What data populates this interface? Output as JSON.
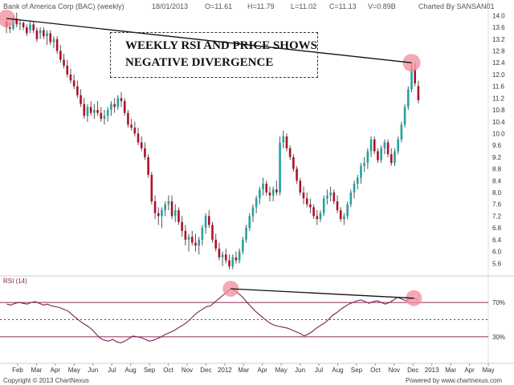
{
  "header": {
    "title": "Bank of America Corp (BAC) (weekly)",
    "date": "18/01/2013",
    "open": "O=11.61",
    "high": "H=11.79",
    "low": "L=11.02",
    "close": "C=11.13",
    "volume": "V=0.89B",
    "charted_by": "Charted By SANSAN01"
  },
  "annotation": {
    "line1": "WEEKLY RSI AND PRICE SHOWS",
    "line2": "NEGATIVE DIVERGENCE"
  },
  "footer": {
    "copyright": "Copyright © 2013 ChartNexus",
    "powered": "Powered by www.chartnexus.com"
  },
  "colors": {
    "up": "#22a3a3",
    "down": "#b0102a",
    "rsi_line": "#7a2450",
    "highlight": "#f08c98"
  },
  "chart_data": [
    {
      "type": "candlestick",
      "title": "Bank of America Corp (BAC) (weekly)",
      "ylim": [
        5.2,
        14.2
      ],
      "y_ticks": [
        5.6,
        6.0,
        6.4,
        6.8,
        7.2,
        7.6,
        8.0,
        8.4,
        8.8,
        9.2,
        9.6,
        10.0,
        10.4,
        10.8,
        11.2,
        11.6,
        12.0,
        12.4,
        12.8,
        13.2,
        13.6,
        14.0
      ],
      "x_ticks": [
        "Feb",
        "Mar",
        "Apr",
        "May",
        "Jun",
        "Jul",
        "Aug",
        "Sep",
        "Oct",
        "Nov",
        "Dec",
        "2012",
        "Mar",
        "Apr",
        "May",
        "Jun",
        "Jul",
        "Aug",
        "Sep",
        "Oct",
        "Nov",
        "Dec",
        "2013",
        "Mar",
        "Apr",
        "May"
      ],
      "series": [
        {
          "values": [
            [
              13.8,
              13.9,
              13.4,
              13.6
            ],
            [
              13.6,
              13.75,
              13.4,
              13.55
            ],
            [
              13.55,
              14.0,
              13.5,
              13.9
            ],
            [
              13.9,
              14.1,
              13.6,
              13.7
            ],
            [
              13.7,
              13.85,
              13.5,
              13.75
            ],
            [
              13.75,
              13.8,
              13.5,
              13.6
            ],
            [
              13.6,
              13.7,
              13.3,
              13.4
            ],
            [
              13.5,
              13.8,
              13.4,
              13.7
            ],
            [
              13.7,
              13.8,
              13.4,
              13.5
            ],
            [
              13.5,
              13.6,
              13.1,
              13.2
            ],
            [
              13.4,
              13.6,
              13.2,
              13.5
            ],
            [
              13.5,
              13.6,
              13.2,
              13.3
            ],
            [
              13.3,
              13.5,
              13.0,
              13.4
            ],
            [
              13.4,
              13.5,
              13.0,
              13.1
            ],
            [
              13.1,
              13.3,
              12.9,
              13.2
            ],
            [
              13.2,
              13.3,
              12.7,
              12.8
            ],
            [
              12.8,
              13.0,
              12.4,
              12.5
            ],
            [
              12.5,
              12.7,
              12.2,
              12.3
            ],
            [
              12.3,
              12.5,
              11.9,
              12.0
            ],
            [
              12.0,
              12.2,
              11.7,
              11.8
            ],
            [
              11.8,
              12.0,
              11.5,
              11.6
            ],
            [
              11.6,
              11.8,
              11.2,
              11.3
            ],
            [
              11.3,
              11.5,
              10.9,
              11.0
            ],
            [
              11.0,
              11.2,
              10.5,
              10.6
            ],
            [
              10.6,
              11.0,
              10.4,
              10.9
            ],
            [
              10.9,
              11.1,
              10.6,
              10.7
            ],
            [
              10.7,
              11.0,
              10.5,
              10.8
            ],
            [
              10.8,
              11.1,
              10.6,
              10.7
            ],
            [
              10.7,
              10.9,
              10.4,
              10.5
            ],
            [
              10.5,
              10.8,
              10.3,
              10.6
            ],
            [
              10.6,
              10.9,
              10.4,
              10.8
            ],
            [
              10.8,
              11.1,
              10.6,
              11.0
            ],
            [
              11.0,
              11.2,
              10.7,
              10.9
            ],
            [
              10.9,
              11.3,
              10.8,
              11.2
            ],
            [
              11.2,
              11.4,
              10.9,
              11.1
            ],
            [
              11.1,
              11.2,
              10.6,
              10.7
            ],
            [
              10.7,
              10.8,
              10.2,
              10.3
            ],
            [
              10.3,
              10.5,
              10.1,
              10.2
            ],
            [
              10.2,
              10.4,
              9.9,
              10.0
            ],
            [
              10.0,
              10.2,
              9.6,
              9.7
            ],
            [
              9.7,
              9.9,
              9.4,
              9.5
            ],
            [
              9.5,
              9.7,
              9.1,
              9.2
            ],
            [
              9.2,
              9.3,
              8.5,
              8.6
            ],
            [
              8.6,
              8.7,
              7.6,
              7.7
            ],
            [
              7.7,
              7.9,
              7.1,
              7.3
            ],
            [
              7.3,
              7.5,
              6.9,
              7.2
            ],
            [
              7.2,
              7.5,
              6.8,
              7.4
            ],
            [
              7.4,
              7.7,
              7.2,
              7.6
            ],
            [
              7.6,
              7.9,
              7.4,
              7.7
            ],
            [
              7.7,
              7.9,
              7.1,
              7.2
            ],
            [
              7.2,
              7.6,
              7.0,
              7.4
            ],
            [
              7.4,
              7.5,
              6.9,
              7.0
            ],
            [
              7.0,
              7.2,
              6.5,
              6.7
            ],
            [
              6.7,
              6.9,
              6.2,
              6.4
            ],
            [
              6.4,
              6.6,
              6.0,
              6.5
            ],
            [
              6.5,
              6.7,
              6.2,
              6.3
            ],
            [
              6.3,
              6.6,
              6.0,
              6.2
            ],
            [
              6.2,
              6.5,
              5.9,
              6.4
            ],
            [
              6.4,
              6.9,
              6.2,
              6.8
            ],
            [
              6.8,
              7.3,
              6.6,
              7.2
            ],
            [
              7.2,
              7.4,
              6.8,
              6.9
            ],
            [
              6.9,
              7.0,
              6.3,
              6.4
            ],
            [
              6.4,
              6.6,
              6.0,
              6.1
            ],
            [
              6.1,
              6.3,
              5.7,
              5.8
            ],
            [
              5.8,
              6.0,
              5.5,
              5.9
            ],
            [
              5.9,
              6.1,
              5.6,
              5.7
            ],
            [
              5.7,
              5.9,
              5.4,
              5.5
            ],
            [
              5.5,
              5.9,
              5.4,
              5.8
            ],
            [
              5.8,
              6.0,
              5.6,
              5.7
            ],
            [
              5.7,
              6.1,
              5.6,
              6.0
            ],
            [
              6.0,
              6.5,
              5.9,
              6.4
            ],
            [
              6.4,
              6.9,
              6.3,
              6.8
            ],
            [
              6.8,
              7.3,
              6.7,
              7.2
            ],
            [
              7.2,
              7.6,
              7.0,
              7.5
            ],
            [
              7.5,
              7.9,
              7.3,
              7.8
            ],
            [
              7.8,
              8.2,
              7.6,
              8.1
            ],
            [
              8.1,
              8.5,
              7.9,
              8.3
            ],
            [
              8.3,
              8.4,
              7.9,
              8.0
            ],
            [
              8.0,
              8.2,
              7.7,
              7.9
            ],
            [
              7.9,
              8.2,
              7.7,
              8.1
            ],
            [
              8.1,
              8.4,
              7.9,
              8.0
            ],
            [
              8.0,
              9.9,
              7.9,
              9.7
            ],
            [
              9.7,
              10.1,
              9.5,
              9.9
            ],
            [
              9.9,
              10.0,
              9.4,
              9.5
            ],
            [
              9.5,
              9.6,
              9.1,
              9.2
            ],
            [
              9.2,
              9.3,
              8.7,
              8.8
            ],
            [
              8.8,
              8.9,
              8.3,
              8.4
            ],
            [
              8.4,
              8.5,
              7.9,
              8.0
            ],
            [
              8.0,
              8.2,
              7.6,
              7.8
            ],
            [
              7.8,
              8.0,
              7.5,
              7.6
            ],
            [
              7.6,
              7.8,
              7.3,
              7.5
            ],
            [
              7.5,
              7.6,
              7.1,
              7.2
            ],
            [
              7.2,
              7.4,
              6.9,
              7.1
            ],
            [
              7.1,
              7.4,
              7.0,
              7.3
            ],
            [
              7.3,
              7.9,
              7.2,
              7.8
            ],
            [
              7.8,
              8.1,
              7.6,
              7.9
            ],
            [
              7.9,
              8.2,
              7.7,
              8.0
            ],
            [
              8.0,
              8.1,
              7.6,
              7.7
            ],
            [
              7.7,
              7.9,
              7.3,
              7.4
            ],
            [
              7.4,
              7.5,
              7.0,
              7.1
            ],
            [
              7.1,
              7.3,
              6.9,
              7.2
            ],
            [
              7.2,
              7.7,
              7.1,
              7.6
            ],
            [
              7.6,
              8.1,
              7.5,
              8.0
            ],
            [
              8.0,
              8.4,
              7.8,
              8.3
            ],
            [
              8.3,
              8.6,
              8.1,
              8.5
            ],
            [
              8.5,
              9.0,
              8.3,
              8.9
            ],
            [
              8.9,
              9.2,
              8.7,
              9.0
            ],
            [
              9.0,
              9.5,
              8.8,
              9.4
            ],
            [
              9.4,
              9.9,
              9.2,
              9.8
            ],
            [
              9.8,
              9.9,
              9.3,
              9.4
            ],
            [
              9.4,
              9.5,
              9.0,
              9.1
            ],
            [
              9.1,
              9.6,
              9.0,
              9.5
            ],
            [
              9.5,
              9.8,
              9.3,
              9.7
            ],
            [
              9.7,
              9.8,
              9.2,
              9.3
            ],
            [
              9.3,
              9.5,
              8.9,
              9.0
            ],
            [
              9.0,
              9.5,
              8.9,
              9.4
            ],
            [
              9.4,
              9.9,
              9.3,
              9.8
            ],
            [
              9.8,
              10.4,
              9.7,
              10.3
            ],
            [
              10.3,
              11.0,
              10.2,
              10.9
            ],
            [
              10.9,
              11.6,
              10.8,
              11.5
            ],
            [
              11.5,
              12.4,
              11.4,
              12.2
            ],
            [
              12.2,
              12.4,
              11.6,
              11.7
            ],
            [
              11.61,
              11.79,
              11.02,
              11.13
            ]
          ]
        }
      ],
      "annotations": [
        "WEEKLY RSI AND PRICE SHOWS",
        "NEGATIVE DIVERGENCE"
      ]
    },
    {
      "type": "line",
      "title": "RSI (14)",
      "ylim": [
        0,
        100
      ],
      "y_ticks": [
        "70%",
        "30%"
      ],
      "levels": [
        70,
        50,
        30
      ],
      "series": [
        {
          "name": "RSI (14)",
          "values": [
            68,
            67,
            69,
            70,
            69,
            68,
            70,
            71,
            69,
            67,
            68,
            66,
            65,
            64,
            62,
            60,
            56,
            52,
            48,
            45,
            42,
            38,
            33,
            28,
            26,
            25,
            27,
            24,
            23,
            25,
            28,
            31,
            30,
            29,
            27,
            25,
            26,
            28,
            30,
            33,
            35,
            37,
            40,
            43,
            46,
            50,
            55,
            59,
            62,
            65,
            66,
            70,
            74,
            78,
            82,
            86,
            84,
            80,
            76,
            70,
            65,
            60,
            56,
            52,
            48,
            45,
            43,
            42,
            41,
            40,
            38,
            36,
            34,
            31,
            33,
            36,
            40,
            43,
            46,
            50,
            55,
            58,
            62,
            65,
            68,
            70,
            72,
            73,
            71,
            69,
            71,
            72,
            70,
            68,
            70,
            73,
            76,
            74,
            72,
            74,
            75,
            73
          ]
        }
      ]
    }
  ]
}
